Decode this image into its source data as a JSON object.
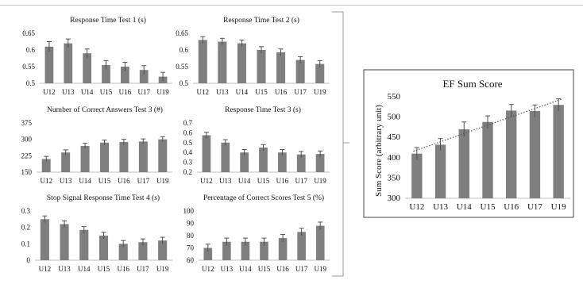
{
  "chart_data": [
    {
      "type": "bar",
      "title": "Response Time Test 1 (s)",
      "categories": [
        "U12",
        "U13",
        "U14",
        "U15",
        "U16",
        "U17",
        "U19"
      ],
      "values": [
        0.61,
        0.62,
        0.59,
        0.555,
        0.55,
        0.54,
        0.52
      ],
      "errors": [
        0.015,
        0.013,
        0.013,
        0.013,
        0.013,
        0.013,
        0.013
      ],
      "ylim": [
        0.5,
        0.65
      ],
      "yticks": [
        "0.5",
        "0.55",
        "0.6",
        "0.65"
      ],
      "xlabel": "",
      "ylabel": ""
    },
    {
      "type": "bar",
      "title": "Response Time Test 2 (s)",
      "categories": [
        "U12",
        "U13",
        "U14",
        "U15",
        "U16",
        "U17",
        "U19"
      ],
      "values": [
        0.63,
        0.625,
        0.62,
        0.6,
        0.593,
        0.57,
        0.558
      ],
      "errors": [
        0.01,
        0.01,
        0.01,
        0.01,
        0.01,
        0.01,
        0.01
      ],
      "ylim": [
        0.5,
        0.65
      ],
      "yticks": [
        "0.5",
        "0.55",
        "0.6",
        "0.65"
      ],
      "xlabel": "",
      "ylabel": ""
    },
    {
      "type": "bar",
      "title": "Number of Correct Answers Test 3 (#)",
      "categories": [
        "U12",
        "U13",
        "U14",
        "U15",
        "U16",
        "U17",
        "U19"
      ],
      "values": [
        210,
        240,
        270,
        285,
        288,
        290,
        300
      ],
      "errors": [
        12,
        12,
        12,
        12,
        12,
        12,
        12
      ],
      "ylim": [
        150,
        375
      ],
      "yticks": [
        "150",
        "225",
        "300",
        "375"
      ],
      "xlabel": "",
      "ylabel": ""
    },
    {
      "type": "bar",
      "title": "Response Time Test 3 (s)",
      "categories": [
        "U12",
        "U13",
        "U14",
        "U15",
        "U16",
        "U17",
        "U19"
      ],
      "values": [
        0.575,
        0.5,
        0.4,
        0.45,
        0.4,
        0.38,
        0.385
      ],
      "errors": [
        0.03,
        0.03,
        0.03,
        0.03,
        0.03,
        0.03,
        0.03
      ],
      "ylim": [
        0.2,
        0.7
      ],
      "yticks": [
        "0.2",
        "0.3",
        "0.4",
        "0.5",
        "0.6",
        "0.7"
      ],
      "xlabel": "",
      "ylabel": ""
    },
    {
      "type": "bar",
      "title": "Stop Signal Response Time Test 4  (s)",
      "categories": [
        "U12",
        "U13",
        "U14",
        "U15",
        "U16",
        "U17",
        "U19"
      ],
      "values": [
        0.25,
        0.22,
        0.185,
        0.15,
        0.1,
        0.11,
        0.12
      ],
      "errors": [
        0.02,
        0.02,
        0.02,
        0.02,
        0.02,
        0.02,
        0.02
      ],
      "ylim": [
        0,
        0.3
      ],
      "yticks": [
        "0",
        "0.1",
        "0.2",
        "0.3"
      ],
      "xlabel": "",
      "ylabel": ""
    },
    {
      "type": "bar",
      "title": "Percentage of Correct Scores Test 5 (%)",
      "categories": [
        "U12",
        "U13",
        "U14",
        "U15",
        "U16",
        "U17",
        "U19"
      ],
      "values": [
        70,
        75,
        75,
        75,
        78,
        83,
        88
      ],
      "errors": [
        3,
        3,
        3,
        3,
        3,
        3,
        3
      ],
      "ylim": [
        60,
        100
      ],
      "yticks": [
        "60",
        "70",
        "80",
        "90",
        "100"
      ],
      "xlabel": "",
      "ylabel": ""
    },
    {
      "type": "bar",
      "title": "EF Sum Score",
      "categories": [
        "U12",
        "U13",
        "U14",
        "U15",
        "U16",
        "U17",
        "U19"
      ],
      "values": [
        410,
        432,
        470,
        488,
        516,
        515,
        530
      ],
      "errors": [
        15,
        15,
        18,
        15,
        15,
        15,
        15
      ],
      "ylim": [
        300,
        550
      ],
      "yticks": [
        "300",
        "350",
        "400",
        "450",
        "500",
        "550"
      ],
      "xlabel": "",
      "ylabel": "Sum Score (arbitrary unit)",
      "trendline": "linear"
    }
  ],
  "colors": {
    "bar": "#7f7f7f",
    "error_bar": "#505050",
    "axis": "#bfbfbf",
    "trendline": "#555555",
    "bracket": "#9a9a9a",
    "box_border": "#444444"
  }
}
